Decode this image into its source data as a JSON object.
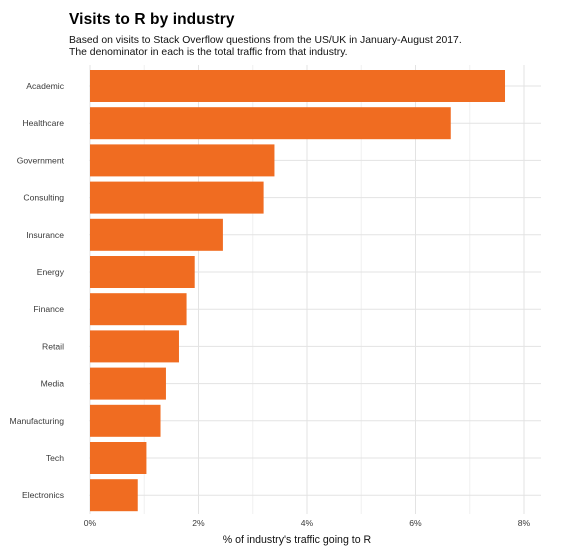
{
  "chart_data": {
    "type": "bar",
    "orientation": "horizontal",
    "title": "Visits to R by industry",
    "subtitle_lines": [
      "Based on visits to Stack Overflow questions from the US/UK in January-August 2017.",
      "The denominator in each is the total traffic from that industry."
    ],
    "xlabel": "% of industry's traffic going to R",
    "ylabel": "",
    "categories": [
      "Academic",
      "Healthcare",
      "Government",
      "Consulting",
      "Insurance",
      "Energy",
      "Finance",
      "Retail",
      "Media",
      "Manufacturing",
      "Tech",
      "Electronics"
    ],
    "values": [
      7.65,
      6.65,
      3.4,
      3.2,
      2.45,
      1.93,
      1.78,
      1.64,
      1.4,
      1.3,
      1.04,
      0.88
    ],
    "xlim": [
      0,
      8
    ],
    "x_ticks": [
      0,
      2,
      4,
      6,
      8
    ],
    "x_tick_labels": [
      "0%",
      "2%",
      "4%",
      "6%",
      "8%"
    ],
    "bar_color": "#f06c21",
    "grid": true,
    "legend": "none"
  }
}
